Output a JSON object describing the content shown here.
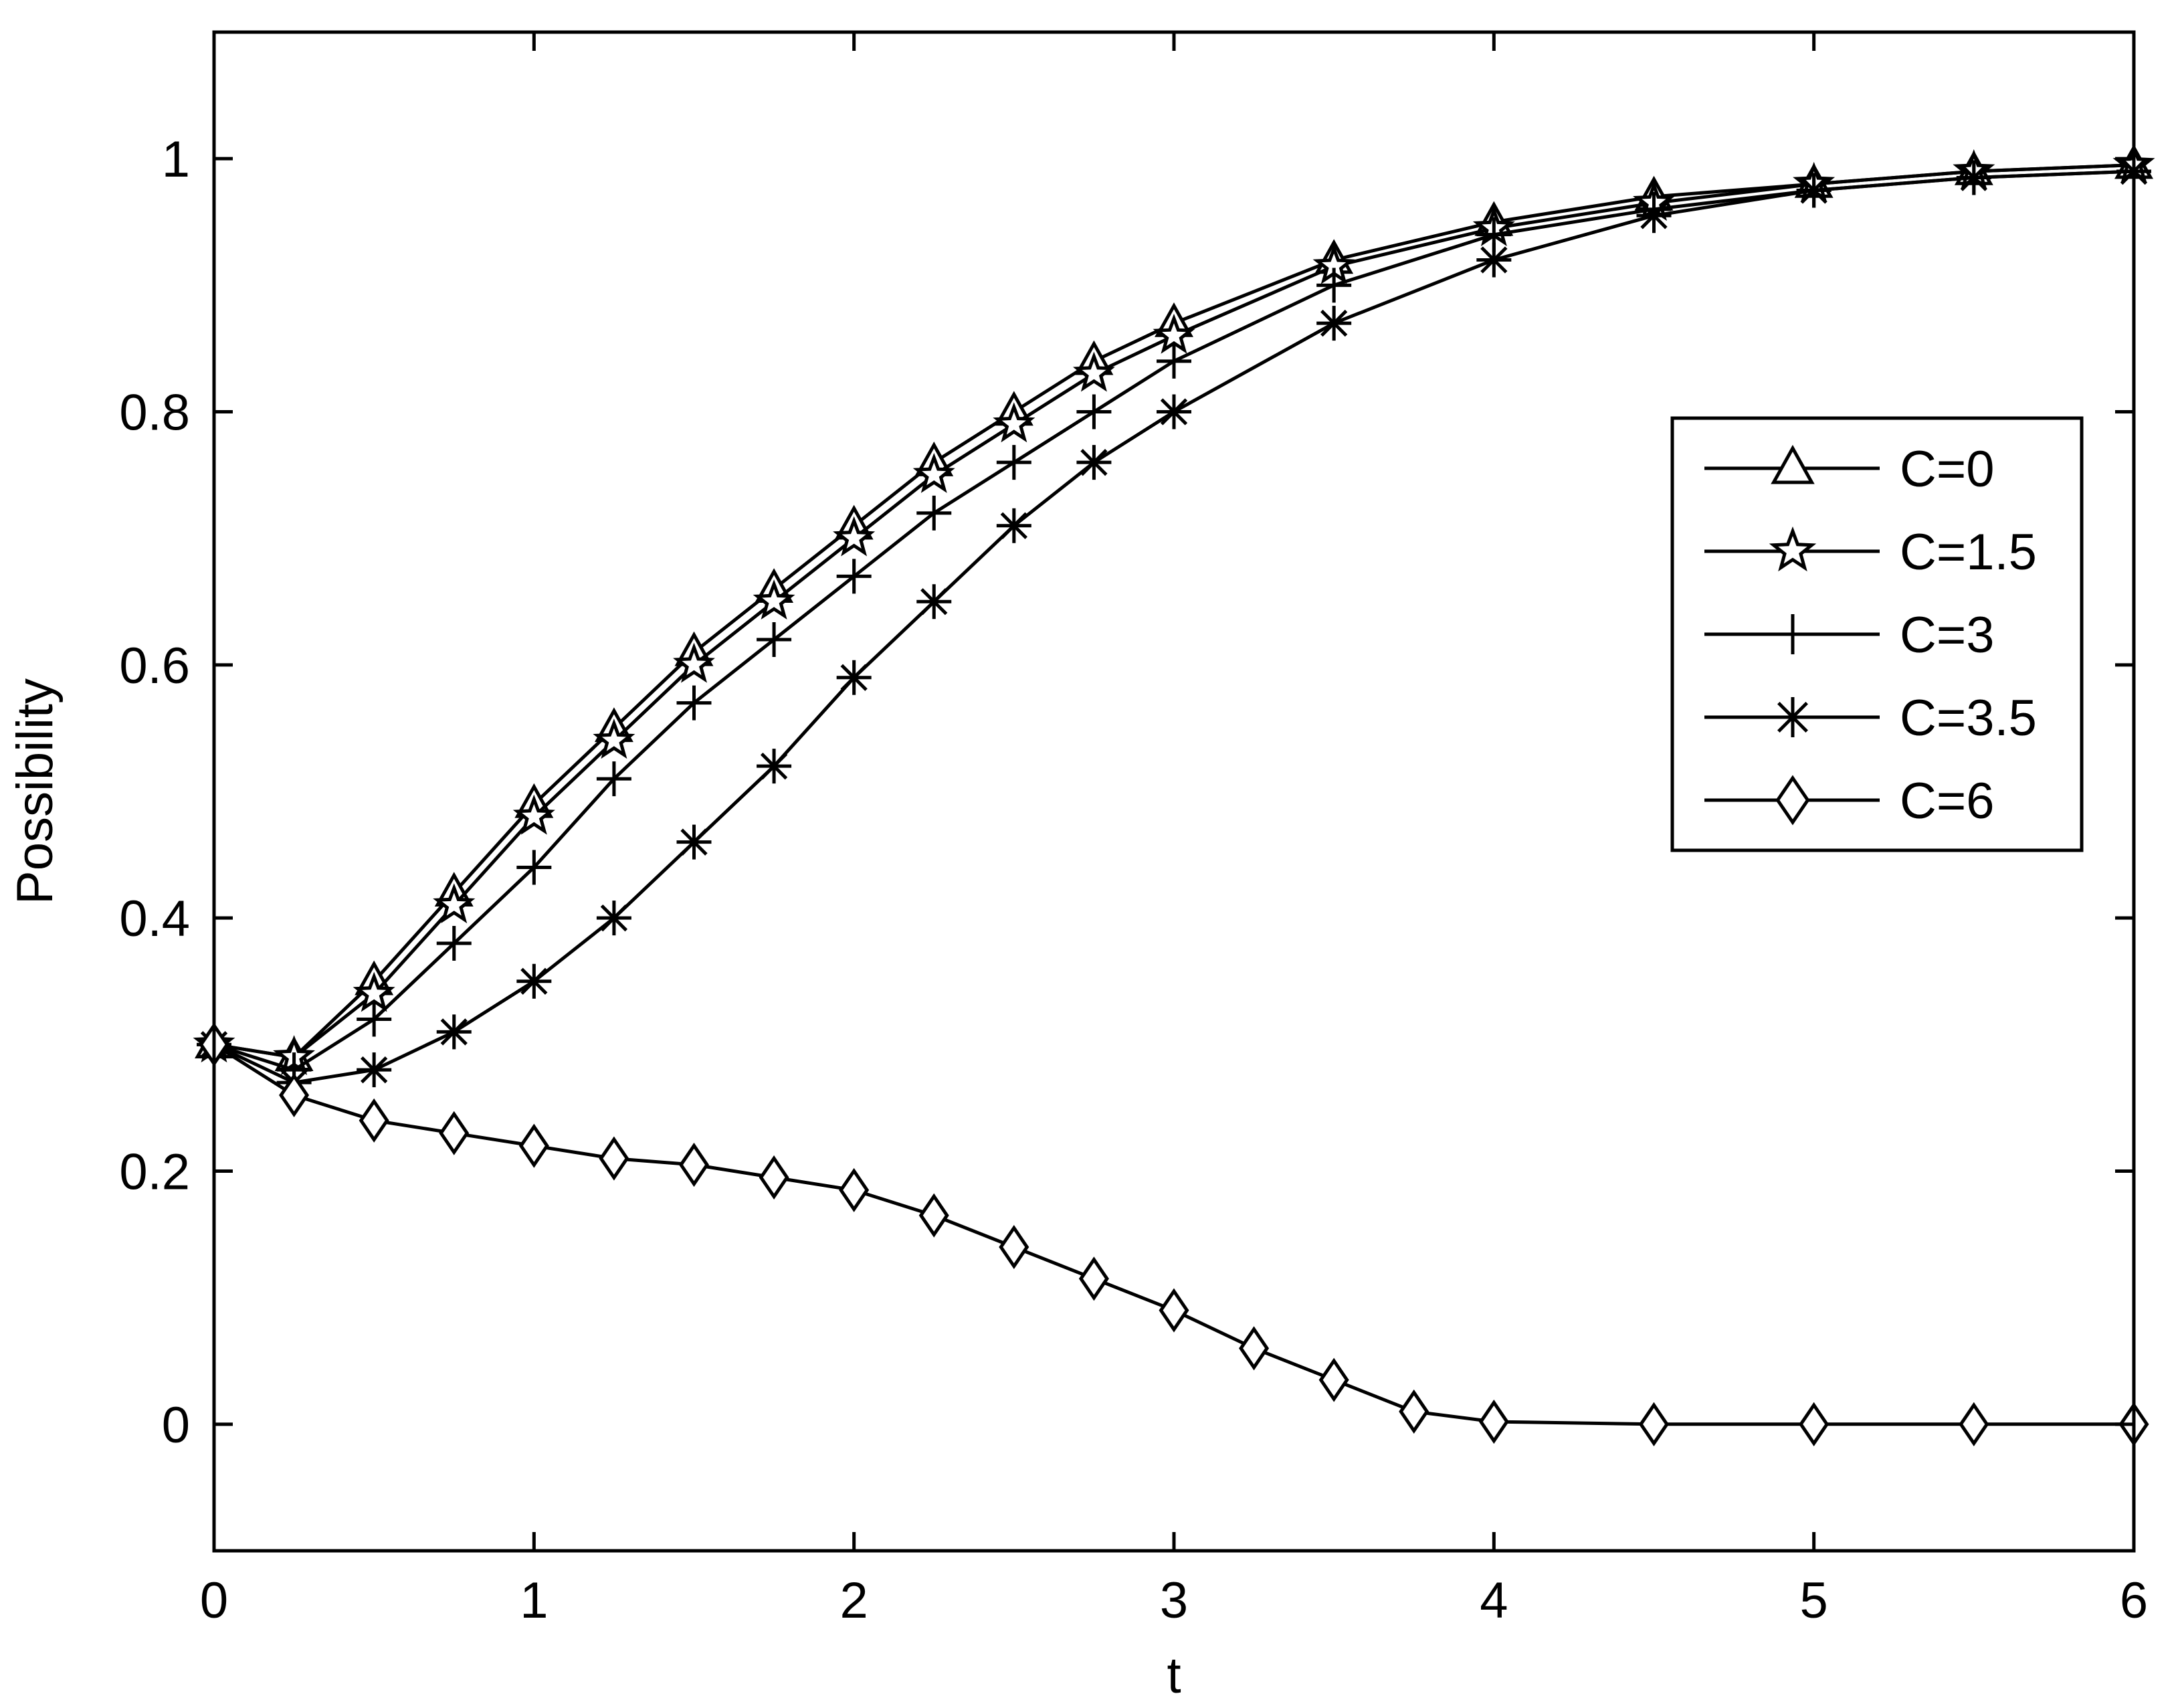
{
  "chart_data": {
    "type": "line",
    "title": "",
    "xlabel": "t",
    "ylabel": "Possibility",
    "xlim": [
      0,
      6
    ],
    "ylim": [
      -0.1,
      1.1
    ],
    "xticks": [
      "0",
      "1",
      "2",
      "3",
      "4",
      "5",
      "6"
    ],
    "yticks": [
      "0",
      "0.2",
      "0.4",
      "0.6",
      "0.8",
      "1"
    ],
    "grid": false,
    "legend_position": "right",
    "series": [
      {
        "name": "C=0",
        "marker": "triangle",
        "x": [
          0,
          0.25,
          0.5,
          0.75,
          1,
          1.25,
          1.5,
          1.75,
          2,
          2.25,
          2.5,
          2.75,
          3,
          3.5,
          4,
          4.5,
          5,
          5.5,
          6
        ],
        "y": [
          0.3,
          0.29,
          0.35,
          0.42,
          0.49,
          0.55,
          0.61,
          0.66,
          0.71,
          0.76,
          0.8,
          0.84,
          0.87,
          0.92,
          0.95,
          0.97,
          0.98,
          0.99,
          0.995
        ]
      },
      {
        "name": "C=1.5",
        "marker": "star",
        "x": [
          0,
          0.25,
          0.5,
          0.75,
          1,
          1.25,
          1.5,
          1.75,
          2,
          2.25,
          2.5,
          2.75,
          3,
          3.5,
          4,
          4.5,
          5,
          5.5,
          6
        ],
        "y": [
          0.3,
          0.29,
          0.34,
          0.41,
          0.48,
          0.54,
          0.6,
          0.65,
          0.7,
          0.75,
          0.79,
          0.83,
          0.86,
          0.915,
          0.945,
          0.965,
          0.98,
          0.99,
          0.995
        ]
      },
      {
        "name": "C=3",
        "marker": "plus",
        "x": [
          0,
          0.25,
          0.5,
          0.75,
          1,
          1.25,
          1.5,
          1.75,
          2,
          2.25,
          2.5,
          2.75,
          3,
          3.5,
          4,
          4.5,
          5,
          5.5,
          6
        ],
        "y": [
          0.3,
          0.28,
          0.32,
          0.38,
          0.44,
          0.51,
          0.57,
          0.62,
          0.67,
          0.72,
          0.76,
          0.8,
          0.84,
          0.9,
          0.94,
          0.96,
          0.975,
          0.985,
          0.99
        ]
      },
      {
        "name": "C=3.5",
        "marker": "asterisk",
        "x": [
          0,
          0.25,
          0.5,
          0.75,
          1,
          1.25,
          1.5,
          1.75,
          2,
          2.25,
          2.5,
          2.75,
          3,
          3.5,
          4,
          4.5,
          5,
          5.5,
          6
        ],
        "y": [
          0.3,
          0.27,
          0.28,
          0.31,
          0.35,
          0.4,
          0.46,
          0.52,
          0.59,
          0.65,
          0.71,
          0.76,
          0.8,
          0.87,
          0.92,
          0.955,
          0.975,
          0.985,
          0.99
        ]
      },
      {
        "name": "C=6",
        "marker": "diamond",
        "x": [
          0,
          0.25,
          0.5,
          0.75,
          1,
          1.25,
          1.5,
          1.75,
          2,
          2.25,
          2.5,
          2.75,
          3,
          3.25,
          3.5,
          3.75,
          4,
          4.5,
          5,
          5.5,
          6
        ],
        "y": [
          0.3,
          0.26,
          0.24,
          0.23,
          0.22,
          0.21,
          0.205,
          0.195,
          0.185,
          0.165,
          0.14,
          0.115,
          0.09,
          0.06,
          0.035,
          0.01,
          0.002,
          0,
          0,
          0,
          0
        ]
      }
    ]
  }
}
